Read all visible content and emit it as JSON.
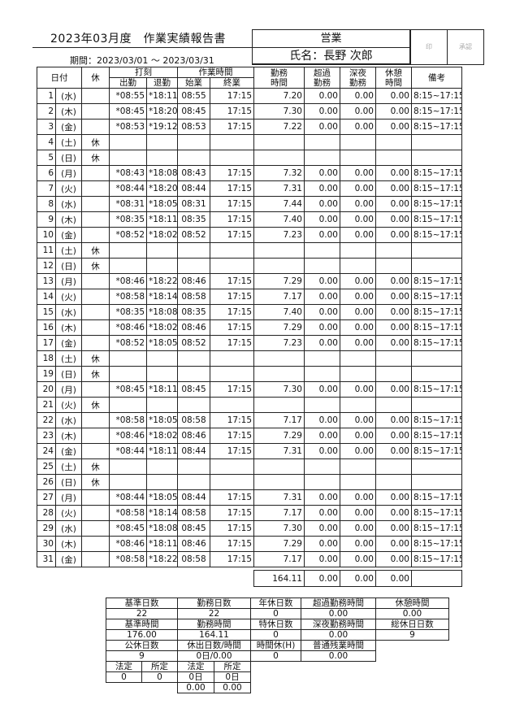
{
  "header": {
    "title": "2023年03月度　作業実績報告書",
    "period": "期間：2023/03/01 ～ 2023/03/31",
    "department": "営業",
    "name": "氏名：長野 次郎",
    "stamp_label": "印",
    "approval_label": "承認"
  },
  "columns": {
    "date": "日付",
    "holiday": "休",
    "stamp_group": "打刻",
    "clock_in": "出勤",
    "clock_out": "退勤",
    "work_group": "作業時間",
    "start": "始業",
    "end": "終業",
    "work_hours": "勤務\n時間",
    "overtime": "超過\n勤務",
    "night": "深夜\n勤務",
    "rest": "休憩\n時間",
    "remarks": "備考"
  },
  "rows": [
    {
      "d": "1",
      "w": "(水)",
      "k": "",
      "in": "*08:55",
      "out": "*18:11",
      "s": "08:55",
      "e": "17:15",
      "h": "7.20",
      "o": "0.00",
      "n": "0.00",
      "r": "0.00",
      "note": "8:15~17:15"
    },
    {
      "d": "2",
      "w": "(木)",
      "k": "",
      "in": "*08:45",
      "out": "*18:20",
      "s": "08:45",
      "e": "17:15",
      "h": "7.30",
      "o": "0.00",
      "n": "0.00",
      "r": "0.00",
      "note": "8:15~17:15"
    },
    {
      "d": "3",
      "w": "(金)",
      "k": "",
      "in": "*08:53",
      "out": "*19:12",
      "s": "08:53",
      "e": "17:15",
      "h": "7.22",
      "o": "0.00",
      "n": "0.00",
      "r": "0.00",
      "note": "8:15~17:15"
    },
    {
      "d": "4",
      "w": "(土)",
      "k": "休"
    },
    {
      "d": "5",
      "w": "(日)",
      "k": "休"
    },
    {
      "d": "6",
      "w": "(月)",
      "k": "",
      "in": "*08:43",
      "out": "*18:08",
      "s": "08:43",
      "e": "17:15",
      "h": "7.32",
      "o": "0.00",
      "n": "0.00",
      "r": "0.00",
      "note": "8:15~17:15"
    },
    {
      "d": "7",
      "w": "(火)",
      "k": "",
      "in": "*08:44",
      "out": "*18:20",
      "s": "08:44",
      "e": "17:15",
      "h": "7.31",
      "o": "0.00",
      "n": "0.00",
      "r": "0.00",
      "note": "8:15~17:15"
    },
    {
      "d": "8",
      "w": "(水)",
      "k": "",
      "in": "*08:31",
      "out": "*18:05",
      "s": "08:31",
      "e": "17:15",
      "h": "7.44",
      "o": "0.00",
      "n": "0.00",
      "r": "0.00",
      "note": "8:15~17:15"
    },
    {
      "d": "9",
      "w": "(木)",
      "k": "",
      "in": "*08:35",
      "out": "*18:11",
      "s": "08:35",
      "e": "17:15",
      "h": "7.40",
      "o": "0.00",
      "n": "0.00",
      "r": "0.00",
      "note": "8:15~17:15"
    },
    {
      "d": "10",
      "w": "(金)",
      "k": "",
      "in": "*08:52",
      "out": "*18:02",
      "s": "08:52",
      "e": "17:15",
      "h": "7.23",
      "o": "0.00",
      "n": "0.00",
      "r": "0.00",
      "note": "8:15~17:15"
    },
    {
      "d": "11",
      "w": "(土)",
      "k": "休"
    },
    {
      "d": "12",
      "w": "(日)",
      "k": "休"
    },
    {
      "d": "13",
      "w": "(月)",
      "k": "",
      "in": "*08:46",
      "out": "*18:22",
      "s": "08:46",
      "e": "17:15",
      "h": "7.29",
      "o": "0.00",
      "n": "0.00",
      "r": "0.00",
      "note": "8:15~17:15"
    },
    {
      "d": "14",
      "w": "(火)",
      "k": "",
      "in": "*08:58",
      "out": "*18:14",
      "s": "08:58",
      "e": "17:15",
      "h": "7.17",
      "o": "0.00",
      "n": "0.00",
      "r": "0.00",
      "note": "8:15~17:15"
    },
    {
      "d": "15",
      "w": "(水)",
      "k": "",
      "in": "*08:35",
      "out": "*18:08",
      "s": "08:35",
      "e": "17:15",
      "h": "7.40",
      "o": "0.00",
      "n": "0.00",
      "r": "0.00",
      "note": "8:15~17:15"
    },
    {
      "d": "16",
      "w": "(木)",
      "k": "",
      "in": "*08:46",
      "out": "*18:02",
      "s": "08:46",
      "e": "17:15",
      "h": "7.29",
      "o": "0.00",
      "n": "0.00",
      "r": "0.00",
      "note": "8:15~17:15"
    },
    {
      "d": "17",
      "w": "(金)",
      "k": "",
      "in": "*08:52",
      "out": "*18:05",
      "s": "08:52",
      "e": "17:15",
      "h": "7.23",
      "o": "0.00",
      "n": "0.00",
      "r": "0.00",
      "note": "8:15~17:15"
    },
    {
      "d": "18",
      "w": "(土)",
      "k": "休"
    },
    {
      "d": "19",
      "w": "(日)",
      "k": "休"
    },
    {
      "d": "20",
      "w": "(月)",
      "k": "",
      "in": "*08:45",
      "out": "*18:11",
      "s": "08:45",
      "e": "17:15",
      "h": "7.30",
      "o": "0.00",
      "n": "0.00",
      "r": "0.00",
      "note": "8:15~17:15"
    },
    {
      "d": "21",
      "w": "(火)",
      "k": "休"
    },
    {
      "d": "22",
      "w": "(水)",
      "k": "",
      "in": "*08:58",
      "out": "*18:05",
      "s": "08:58",
      "e": "17:15",
      "h": "7.17",
      "o": "0.00",
      "n": "0.00",
      "r": "0.00",
      "note": "8:15~17:15"
    },
    {
      "d": "23",
      "w": "(木)",
      "k": "",
      "in": "*08:46",
      "out": "*18:02",
      "s": "08:46",
      "e": "17:15",
      "h": "7.29",
      "o": "0.00",
      "n": "0.00",
      "r": "0.00",
      "note": "8:15~17:15"
    },
    {
      "d": "24",
      "w": "(金)",
      "k": "",
      "in": "*08:44",
      "out": "*18:11",
      "s": "08:44",
      "e": "17:15",
      "h": "7.31",
      "o": "0.00",
      "n": "0.00",
      "r": "0.00",
      "note": "8:15~17:15"
    },
    {
      "d": "25",
      "w": "(土)",
      "k": "休"
    },
    {
      "d": "26",
      "w": "(日)",
      "k": "休"
    },
    {
      "d": "27",
      "w": "(月)",
      "k": "",
      "in": "*08:44",
      "out": "*18:05",
      "s": "08:44",
      "e": "17:15",
      "h": "7.31",
      "o": "0.00",
      "n": "0.00",
      "r": "0.00",
      "note": "8:15~17:15"
    },
    {
      "d": "28",
      "w": "(火)",
      "k": "",
      "in": "*08:58",
      "out": "*18:14",
      "s": "08:58",
      "e": "17:15",
      "h": "7.17",
      "o": "0.00",
      "n": "0.00",
      "r": "0.00",
      "note": "8:15~17:15"
    },
    {
      "d": "29",
      "w": "(水)",
      "k": "",
      "in": "*08:45",
      "out": "*18:08",
      "s": "08:45",
      "e": "17:15",
      "h": "7.30",
      "o": "0.00",
      "n": "0.00",
      "r": "0.00",
      "note": "8:15~17:15"
    },
    {
      "d": "30",
      "w": "(木)",
      "k": "",
      "in": "*08:46",
      "out": "*18:11",
      "s": "08:46",
      "e": "17:15",
      "h": "7.29",
      "o": "0.00",
      "n": "0.00",
      "r": "0.00",
      "note": "8:15~17:15"
    },
    {
      "d": "31",
      "w": "(金)",
      "k": "",
      "in": "*08:58",
      "out": "*18:22",
      "s": "08:58",
      "e": "17:15",
      "h": "7.17",
      "o": "0.00",
      "n": "0.00",
      "r": "0.00",
      "note": "8:15~17:15"
    }
  ],
  "totals": {
    "work_hours": "164.11",
    "overtime": "0.00",
    "night": "0.00",
    "rest": "0.00"
  },
  "summary": {
    "standard_days_label": "基準日数",
    "standard_days": "22",
    "work_days_label": "勤務日数",
    "work_days": "22",
    "annual_leave_label": "年休日数",
    "annual_leave": "0",
    "overtime_label": "超過勤務時間",
    "overtime": "0.00",
    "rest_label": "休憩時間",
    "rest": "0.00",
    "standard_hours_label": "基準時間",
    "standard_hours": "176.00",
    "work_hours_label": "勤務時間",
    "work_hours": "164.11",
    "special_leave_label": "特休日数",
    "special_leave": "0",
    "night_label": "深夜勤務時間",
    "night": "0.00",
    "total_holidays_label": "総休日日数",
    "total_holidays": "9",
    "public_holidays_label": "公休日数",
    "public_holidays": "9",
    "holiday_work_label": "休出日数/時間",
    "holiday_work": "0日/0.00",
    "hourly_leave_label": "時間休(H)",
    "hourly_leave": "0",
    "normal_overtime_label": "普通残業時間",
    "normal_overtime": "0.00",
    "legal_label": "法定",
    "prescribed_label": "所定",
    "legal_days": "0",
    "prescribed_days": "0",
    "hw_legal_label": "法定",
    "hw_prescribed_label": "所定",
    "hw_legal_days": "0日",
    "hw_prescribed_days": "0日",
    "hw_legal_hours": "0.00",
    "hw_prescribed_hours": "0.00"
  }
}
